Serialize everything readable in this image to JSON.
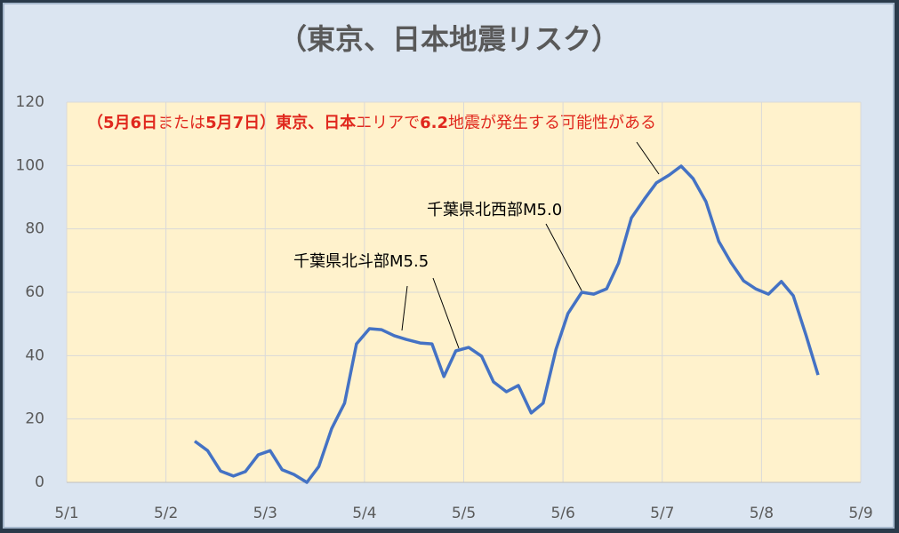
{
  "chart_data": {
    "type": "line",
    "title": "（東京、日本地震リスク）",
    "note_parts": [
      "（5月6日",
      "または",
      "5月7日）東京、日本",
      "エリアで",
      "6.2",
      "地震が発生する可能性がある"
    ],
    "callouts": [
      "千葉県北斗部M5.5",
      "千葉県北西部M5.0"
    ],
    "x": [
      2.29,
      2.42,
      2.55,
      2.68,
      2.8,
      2.93,
      3.05,
      3.17,
      3.29,
      3.42,
      3.54,
      3.67,
      3.8,
      3.92,
      4.05,
      4.17,
      4.3,
      4.42,
      4.56,
      4.68,
      4.8,
      4.92,
      5.05,
      5.18,
      5.3,
      5.43,
      5.55,
      5.68,
      5.8,
      5.93,
      6.05,
      6.19,
      6.31,
      6.44,
      6.56,
      6.69,
      6.82,
      6.94,
      7.07,
      7.19,
      7.31,
      7.44,
      7.57,
      7.69,
      7.82,
      7.94,
      8.07,
      8.2,
      8.32,
      8.45,
      8.57
    ],
    "values": [
      13,
      10,
      3.6,
      2,
      3.4,
      8.7,
      10,
      4,
      2.5,
      0,
      5,
      17,
      25,
      43.7,
      48.5,
      48.2,
      46.3,
      45.1,
      44,
      43.7,
      33.4,
      41.5,
      42.6,
      39.8,
      31.7,
      28.6,
      30.6,
      21.9,
      25,
      42,
      53.3,
      60,
      59.4,
      61.1,
      69.2,
      83.5,
      89.4,
      94.5,
      97,
      99.8,
      95.9,
      88.6,
      76,
      69.5,
      63.6,
      61.1,
      59.4,
      63.4,
      58.9,
      46.3,
      33.9
    ],
    "color": "#4472c4",
    "xlim": [
      1,
      9
    ],
    "xticks": [
      {
        "value": 1,
        "label": "5/1"
      },
      {
        "value": 2,
        "label": "5/2"
      },
      {
        "value": 3,
        "label": "5/3"
      },
      {
        "value": 4,
        "label": "5/4"
      },
      {
        "value": 5,
        "label": "5/5"
      },
      {
        "value": 6,
        "label": "5/6"
      },
      {
        "value": 7,
        "label": "5/7"
      },
      {
        "value": 8,
        "label": "5/8"
      },
      {
        "value": 9,
        "label": "5/9"
      }
    ],
    "ylim": [
      0,
      120
    ],
    "yticks": [
      0,
      20,
      40,
      60,
      80,
      100,
      120
    ],
    "grid": true
  }
}
